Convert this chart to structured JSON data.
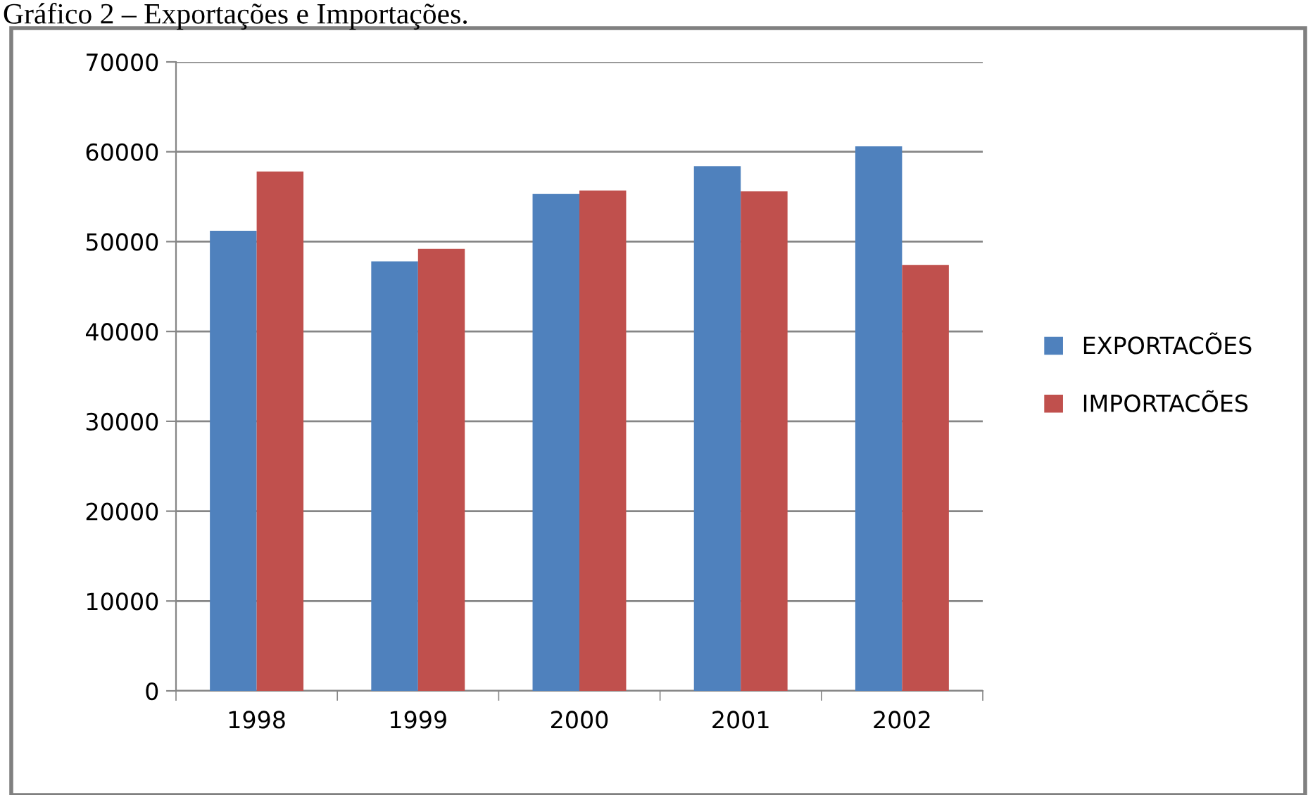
{
  "chart_data": {
    "type": "bar",
    "title": "Gráfico 2 – Exportações e Importações.",
    "categories": [
      "1998",
      "1999",
      "2000",
      "2001",
      "2002"
    ],
    "series": [
      {
        "name": "EXPORTACÕES",
        "color": "#4f81bd",
        "values": [
          51200,
          47800,
          55300,
          58400,
          60600
        ]
      },
      {
        "name": "IMPORTACÕES",
        "color": "#c0504d",
        "values": [
          57800,
          49200,
          55700,
          55600,
          47400
        ]
      }
    ],
    "ylim": [
      0,
      70000
    ],
    "yticks": [
      0,
      10000,
      20000,
      30000,
      40000,
      50000,
      60000,
      70000
    ],
    "grid": "y",
    "legend": "right"
  }
}
